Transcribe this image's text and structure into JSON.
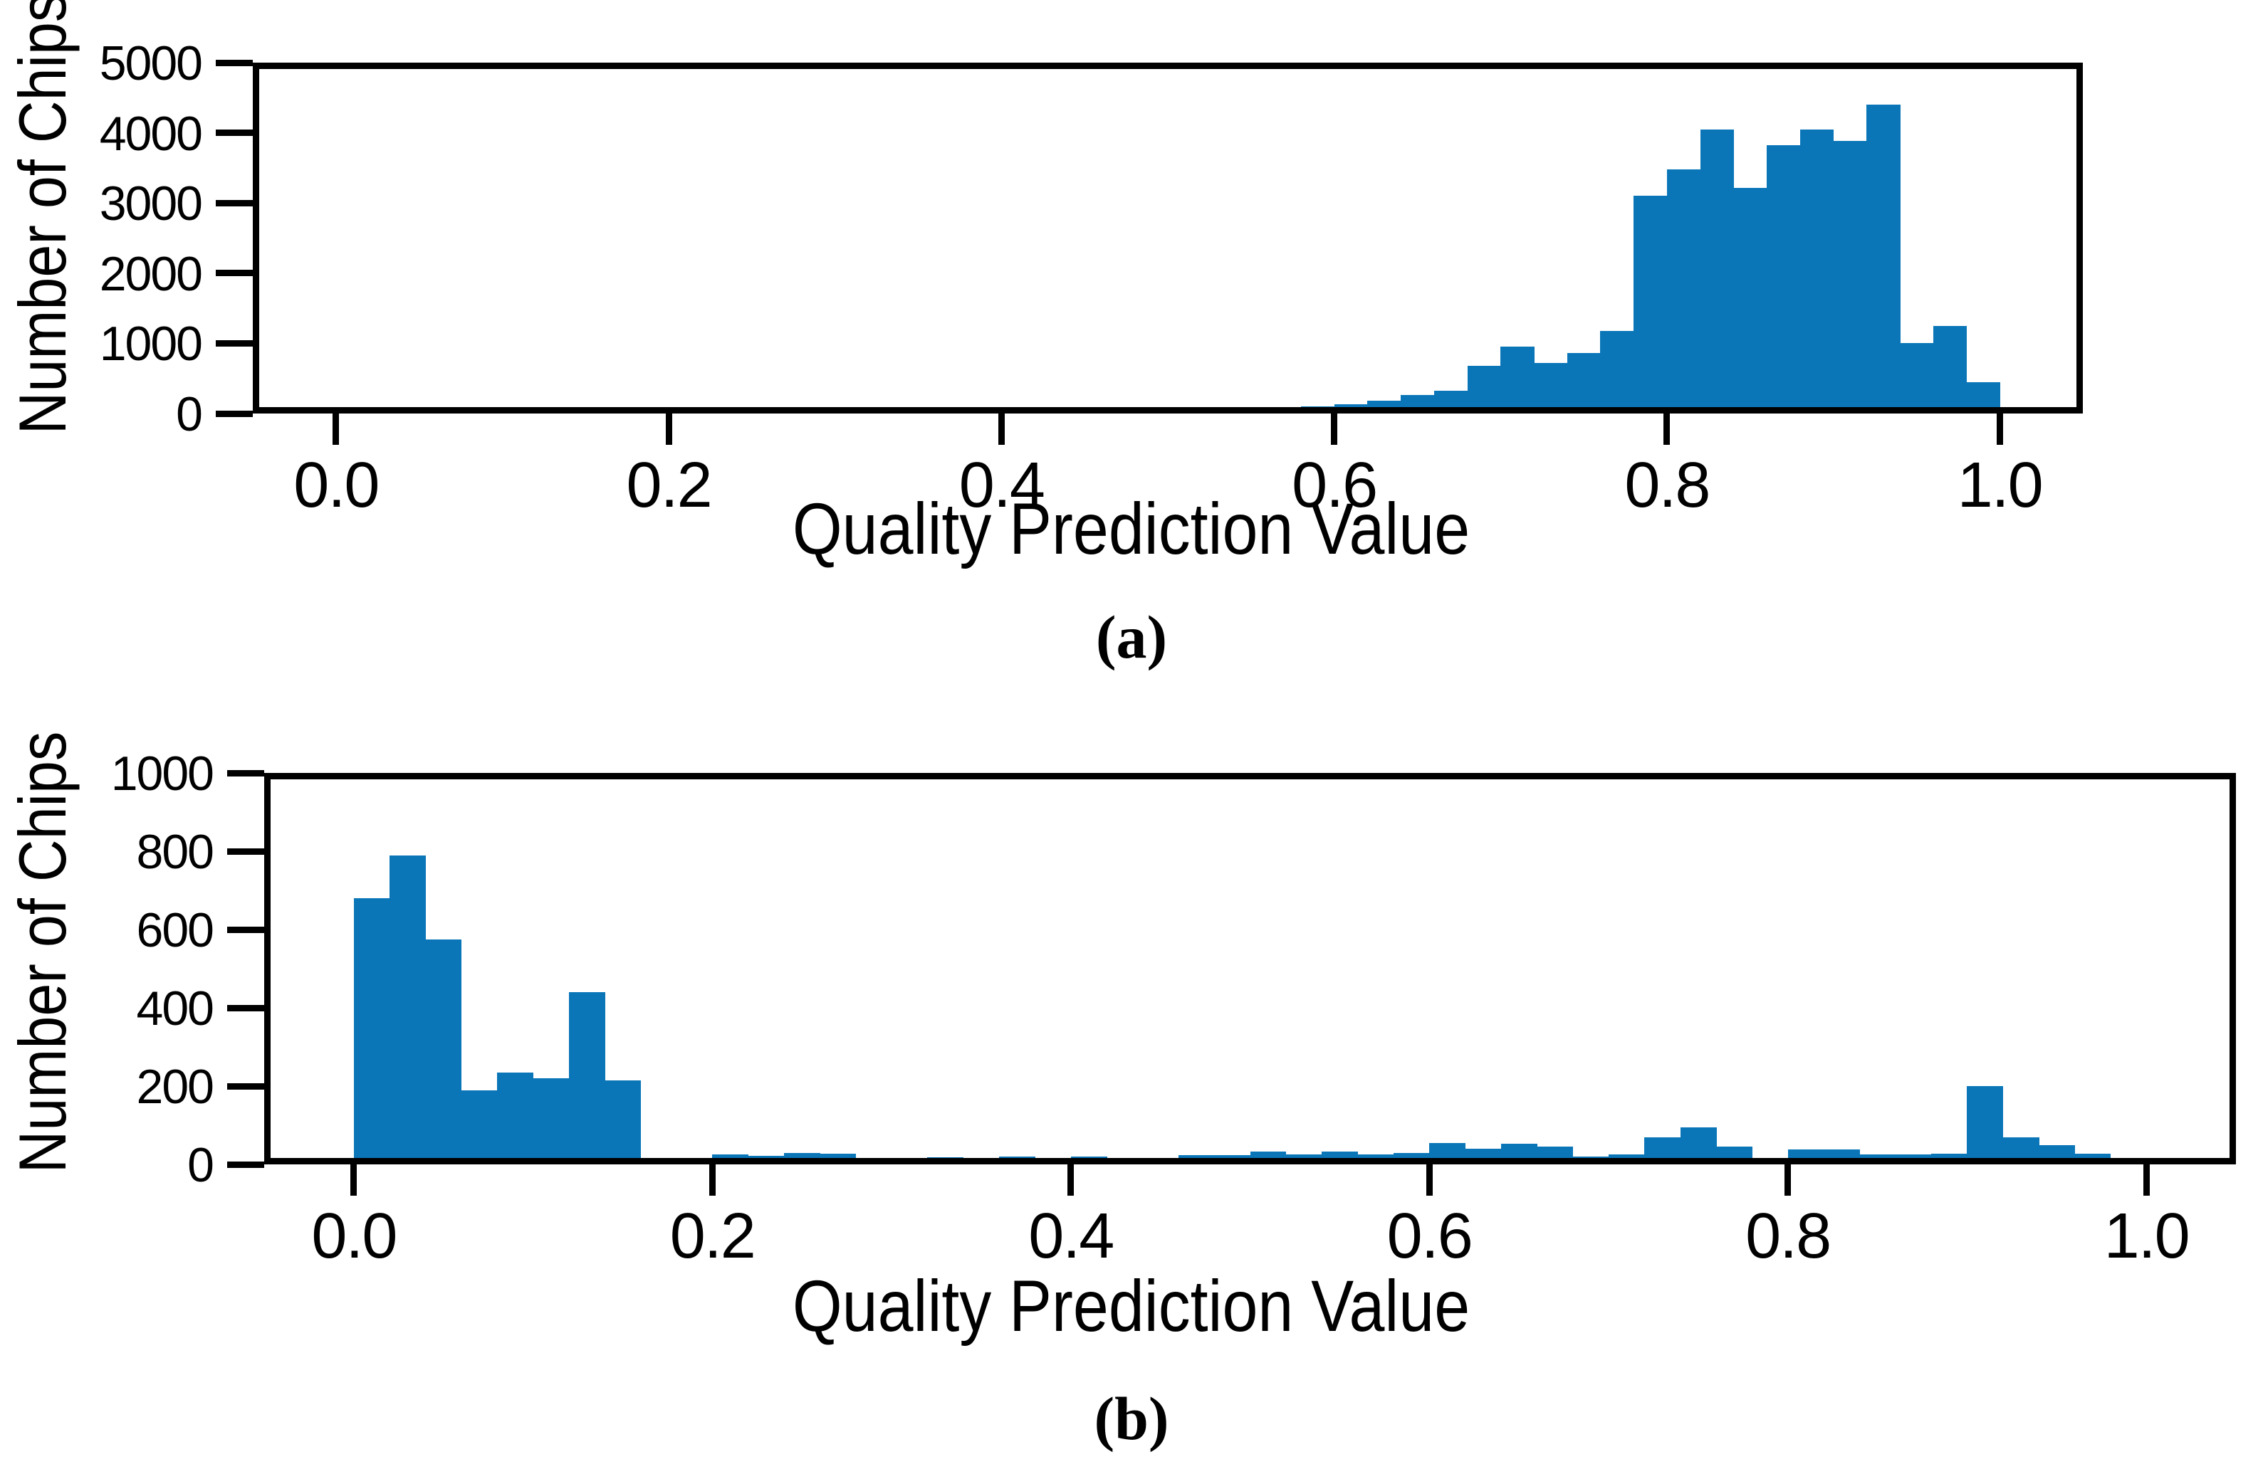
{
  "figure": {
    "background": "#ffffff",
    "bar_color": "#0a76b8",
    "axis_color": "#000000",
    "text_color": "#000000"
  },
  "chart_data": [
    {
      "id": "a",
      "type": "bar",
      "subtype": "histogram",
      "caption": "(a)",
      "xlabel": "Quality Prediction Value",
      "ylabel": "Number of Chips",
      "xlim": [
        -0.05,
        1.05
      ],
      "ylim": [
        0,
        5000
      ],
      "grid": false,
      "legend": "none",
      "x_tick_values": [
        0.0,
        0.2,
        0.4,
        0.6,
        0.8,
        1.0
      ],
      "x_tick_labels": [
        "0.0",
        "0.2",
        "0.4",
        "0.6",
        "0.8",
        "1.0"
      ],
      "y_tick_values": [
        0,
        1000,
        2000,
        3000,
        4000,
        5000
      ],
      "y_tick_labels": [
        "0",
        "1000",
        "2000",
        "3000",
        "4000",
        "5000"
      ],
      "bin_width": 0.02,
      "bin_starts": [
        0.44,
        0.46,
        0.48,
        0.5,
        0.52,
        0.54,
        0.56,
        0.58,
        0.6,
        0.62,
        0.64,
        0.66,
        0.68,
        0.7,
        0.72,
        0.74,
        0.76,
        0.78,
        0.8,
        0.82,
        0.84,
        0.86,
        0.88,
        0.9,
        0.92,
        0.94,
        0.96,
        0.98
      ],
      "counts": [
        8,
        12,
        18,
        28,
        40,
        55,
        75,
        100,
        135,
        185,
        265,
        320,
        680,
        950,
        720,
        860,
        1180,
        3100,
        3480,
        4050,
        3220,
        3820,
        4050,
        3880,
        4400,
        1000,
        1250,
        450
      ]
    },
    {
      "id": "b",
      "type": "bar",
      "subtype": "histogram",
      "caption": "(b)",
      "xlabel": "Quality Prediction Value",
      "ylabel": "Number of Chips",
      "xlim": [
        -0.05,
        1.05
      ],
      "ylim": [
        0,
        1000
      ],
      "grid": false,
      "legend": "none",
      "x_tick_values": [
        0.0,
        0.2,
        0.4,
        0.6,
        0.8,
        1.0
      ],
      "x_tick_labels": [
        "0.0",
        "0.2",
        "0.4",
        "0.6",
        "0.8",
        "1.0"
      ],
      "y_tick_values": [
        0,
        200,
        400,
        600,
        800,
        1000
      ],
      "y_tick_labels": [
        "0",
        "200",
        "400",
        "600",
        "800",
        "1000"
      ],
      "bin_width": 0.02,
      "bin_starts": [
        0.0,
        0.02,
        0.04,
        0.06,
        0.08,
        0.1,
        0.12,
        0.14,
        0.16,
        0.18,
        0.2,
        0.22,
        0.24,
        0.26,
        0.28,
        0.3,
        0.32,
        0.34,
        0.36,
        0.38,
        0.4,
        0.42,
        0.44,
        0.46,
        0.48,
        0.5,
        0.52,
        0.54,
        0.56,
        0.58,
        0.6,
        0.62,
        0.64,
        0.66,
        0.68,
        0.7,
        0.72,
        0.74,
        0.76,
        0.78,
        0.8,
        0.82,
        0.84,
        0.86,
        0.88,
        0.9,
        0.92,
        0.94,
        0.96,
        0.98
      ],
      "counts": [
        680,
        790,
        575,
        190,
        235,
        220,
        440,
        215,
        10,
        12,
        25,
        22,
        30,
        28,
        8,
        15,
        18,
        8,
        20,
        15,
        20,
        14,
        8,
        24,
        24,
        32,
        26,
        32,
        26,
        30,
        55,
        40,
        52,
        46,
        20,
        25,
        70,
        95,
        45,
        5,
        38,
        38,
        25,
        26,
        28,
        200,
        70,
        50,
        28,
        10
      ]
    }
  ]
}
